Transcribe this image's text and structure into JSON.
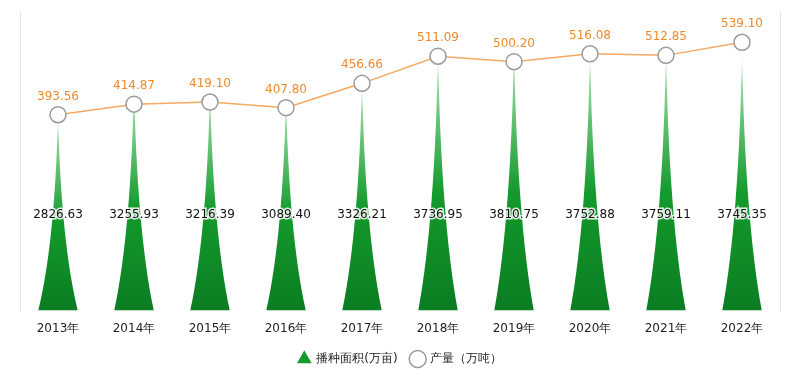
{
  "chart_data": {
    "type": "bar",
    "categories": [
      "2013年",
      "2014年",
      "2015年",
      "2016年",
      "2017年",
      "2018年",
      "2019年",
      "2020年",
      "2021年",
      "2022年"
    ],
    "series": [
      {
        "name": "播种面积(万亩)",
        "type": "bar",
        "color": "#139a2c",
        "values": [
          2826.63,
          3255.93,
          3216.39,
          3089.4,
          3326.21,
          3736.95,
          3810.75,
          3752.88,
          3759.11,
          3745.35
        ],
        "value_labels": [
          "2826.63",
          "3255.93",
          "3216.39",
          "3089.40",
          "3326.21",
          "3736.95",
          "3810.75",
          "3752.88",
          "3759.11",
          "3745.35"
        ]
      },
      {
        "name": "产量（万吨）",
        "type": "line",
        "axis": "y2",
        "color": "#f5a962",
        "marker": "circle",
        "values": [
          393.56,
          414.87,
          419.1,
          407.8,
          456.66,
          511.09,
          500.2,
          516.08,
          512.85,
          539.1
        ],
        "value_labels": [
          "393.56",
          "414.87",
          "419.10",
          "407.80",
          "456.66",
          "511.09",
          "500.20",
          "516.08",
          "512.85",
          "539.10"
        ]
      }
    ],
    "ylim": [
      0,
      4300
    ],
    "y2lim": [
      0,
      600
    ],
    "tick_labels": "x",
    "grid": false,
    "legend": "bottom",
    "data_labels": true
  }
}
